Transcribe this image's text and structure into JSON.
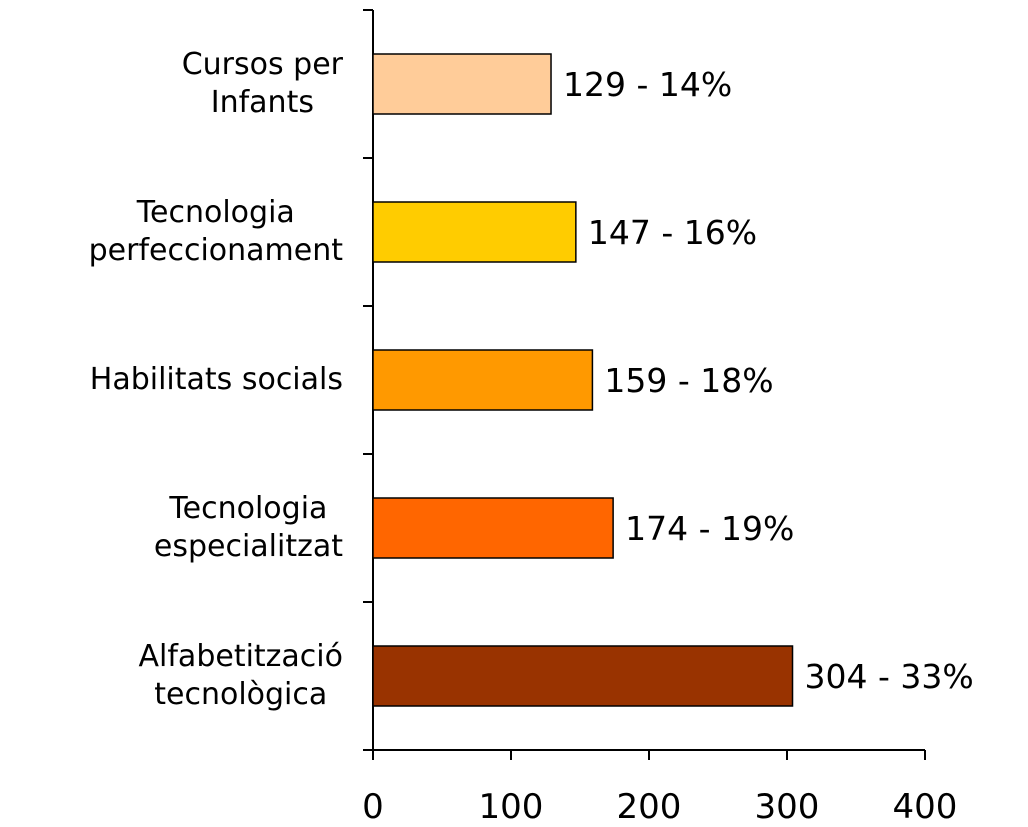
{
  "chart_data": {
    "type": "bar",
    "orientation": "horizontal",
    "categories": [
      "Cursos per\nInfants",
      "Tecnologia\nperfeccionament",
      "Habilitats socials",
      "Tecnologia\nespecialitzat",
      "Alfabetització\ntecnològica"
    ],
    "values": [
      129,
      147,
      159,
      174,
      304
    ],
    "value_labels": [
      "129 - 14%",
      "147 - 16%",
      "159 - 18%",
      "174 - 19%",
      "304 - 33%"
    ],
    "colors": [
      "#FFCC99",
      "#FFCC00",
      "#FF9900",
      "#FF6600",
      "#993300"
    ],
    "xlim": [
      0,
      400
    ],
    "xticks": [
      0,
      100,
      200,
      300,
      400
    ],
    "grid": false
  }
}
